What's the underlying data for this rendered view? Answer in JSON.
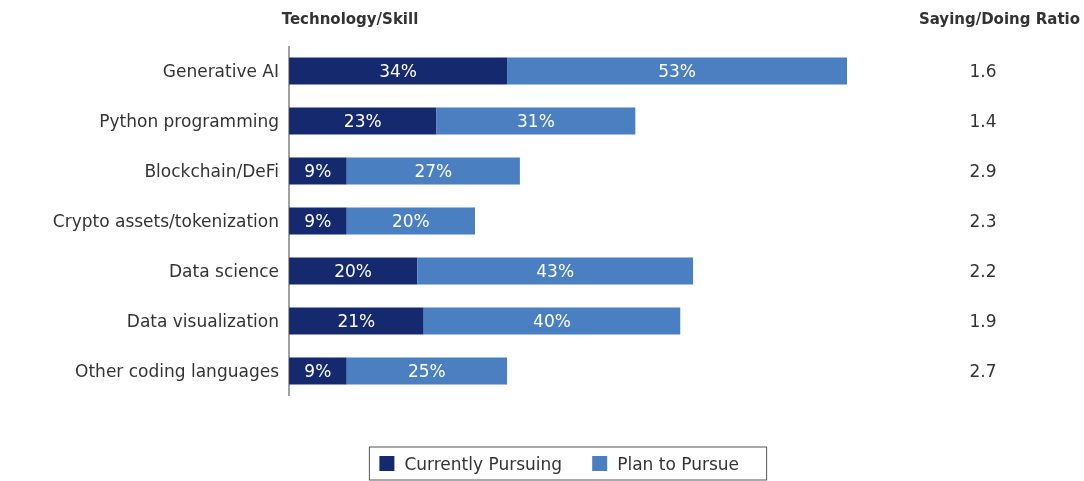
{
  "chart_data": {
    "type": "bar",
    "orientation": "horizontal",
    "stacked": true,
    "ylabel": "Technology/Skill",
    "categories": [
      "Generative AI",
      "Python programming",
      "Blockchain/DeFi",
      "Crypto assets/tokenization",
      "Data science",
      "Data visualization",
      "Other coding languages"
    ],
    "series": [
      {
        "name": "Currently Pursuing",
        "color": "#14296e",
        "values": [
          34,
          23,
          9,
          9,
          20,
          21,
          9
        ],
        "value_labels": [
          "34%",
          "23%",
          "9%",
          "9%",
          "20%",
          "21%",
          "9%"
        ]
      },
      {
        "name": "Plan to Pursue",
        "color": "#4a7fc2",
        "values": [
          53,
          31,
          27,
          20,
          43,
          40,
          25
        ],
        "value_labels": [
          "53%",
          "31%",
          "27%",
          "20%",
          "43%",
          "40%",
          "25%"
        ]
      }
    ],
    "legend": "bottom",
    "annotations": [
      "Saying/Doing Ratio",
      "1.6",
      "1.4",
      "2.9",
      "2.3",
      "2.2",
      "1.9",
      "2.7"
    ]
  }
}
